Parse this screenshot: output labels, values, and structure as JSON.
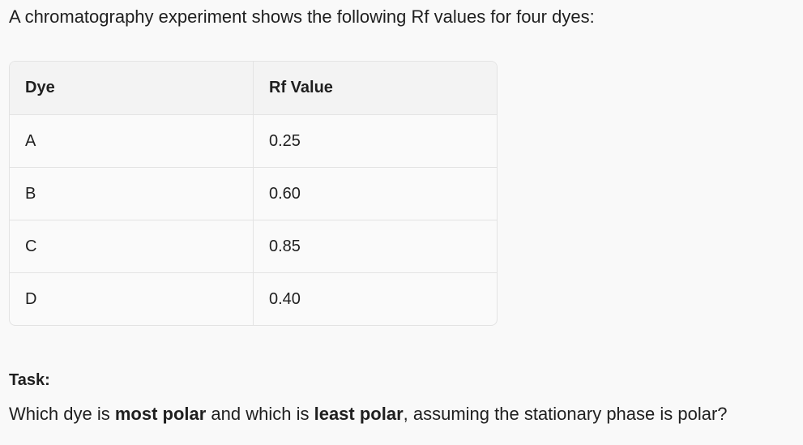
{
  "intro": "A chromatography experiment shows the following Rf values for four dyes:",
  "table": {
    "headers": [
      "Dye",
      "Rf Value"
    ],
    "rows": [
      [
        "A",
        "0.25"
      ],
      [
        "B",
        "0.60"
      ],
      [
        "C",
        "0.85"
      ],
      [
        "D",
        "0.40"
      ]
    ]
  },
  "task_label": "Task:",
  "question": [
    {
      "text": "Which dye is "
    },
    {
      "text": "most polar",
      "bold": true
    },
    {
      "text": " and which is "
    },
    {
      "text": "least polar",
      "bold": true
    },
    {
      "text": ", assuming the stationary phase is polar?"
    }
  ]
}
